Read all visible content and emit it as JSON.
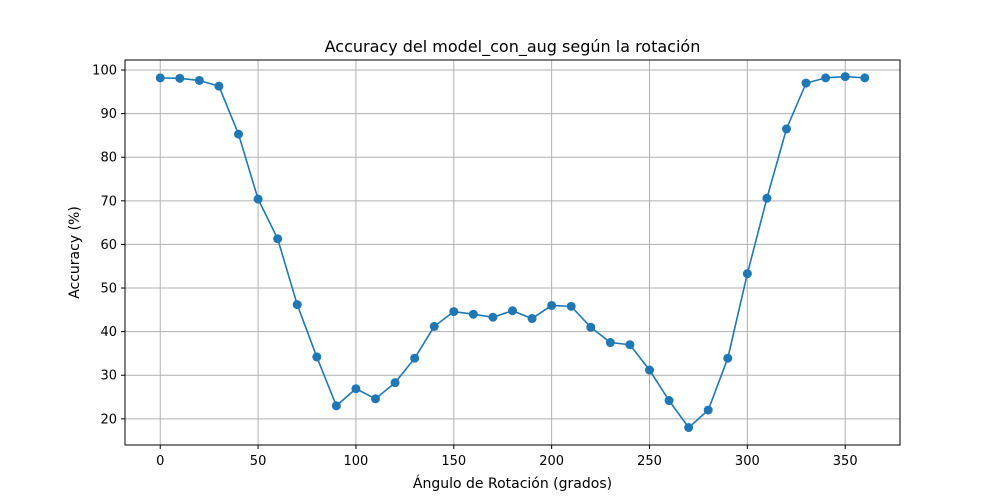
{
  "chart_data": {
    "type": "line",
    "title": "Accuracy del model_con_aug según la rotación",
    "xlabel": "Ángulo de Rotación (grados)",
    "ylabel": "Accuracy (%)",
    "xlim": [
      -18,
      378
    ],
    "ylim": [
      14.0,
      102.3
    ],
    "xticks": [
      0,
      50,
      100,
      150,
      200,
      250,
      300,
      350
    ],
    "yticks": [
      20,
      30,
      40,
      50,
      60,
      70,
      80,
      90,
      100
    ],
    "grid": true,
    "legend": "none",
    "line_color": "#1f77b4",
    "marker": "circle",
    "series": [
      {
        "x": [
          0,
          10,
          20,
          30,
          40,
          50,
          60,
          70,
          80,
          90,
          100,
          110,
          120,
          130,
          140,
          150,
          160,
          170,
          180,
          190,
          200,
          210,
          220,
          230,
          240,
          250,
          260,
          270,
          280,
          290,
          300,
          310,
          320,
          330,
          340,
          350,
          360
        ],
        "y": [
          98.2,
          98.1,
          97.6,
          96.3,
          85.3,
          70.4,
          61.3,
          46.2,
          34.2,
          23.0,
          26.9,
          24.6,
          28.3,
          33.9,
          41.2,
          44.6,
          44.0,
          43.3,
          44.8,
          43.0,
          46.0,
          45.8,
          41.0,
          37.5,
          37.0,
          31.2,
          24.2,
          18.0,
          22.0,
          33.9,
          53.3,
          70.6,
          86.5,
          97.0,
          98.2,
          98.5,
          98.2
        ]
      }
    ]
  }
}
